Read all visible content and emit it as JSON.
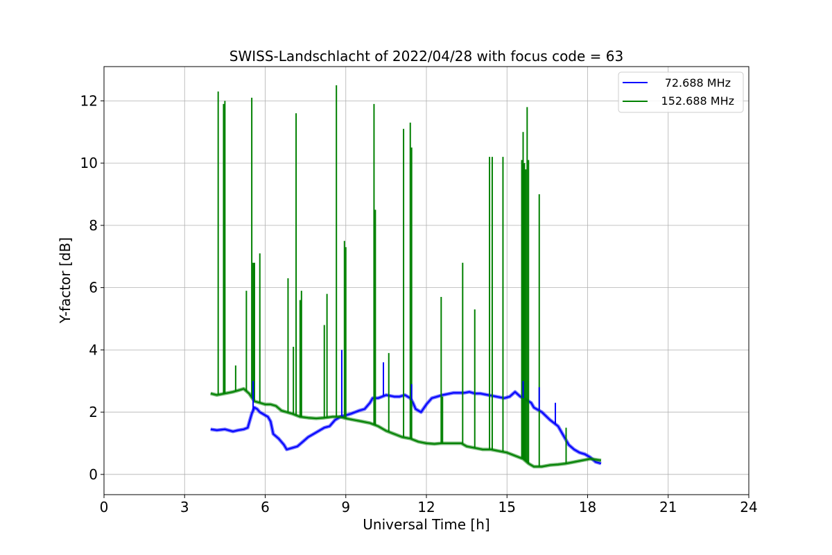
{
  "chart_data": {
    "type": "line",
    "title": "SWISS-Landschlacht of 2022/04/28 with focus code = 63",
    "xlabel": "Universal Time [h]",
    "ylabel": "Y-factor [dB]",
    "xlim": [
      0,
      24
    ],
    "ylim": [
      -0.65,
      13.1
    ],
    "xticks": [
      "0",
      "3",
      "6",
      "9",
      "12",
      "15",
      "18",
      "21",
      "24"
    ],
    "yticks": [
      "0",
      "2",
      "4",
      "6",
      "8",
      "10",
      "12"
    ],
    "grid": true,
    "legend_position": "top-right",
    "series": [
      {
        "name": "72.688 MHz",
        "color": "#0000ff",
        "x": [
          3.97,
          4.2,
          4.5,
          4.8,
          5.0,
          5.2,
          5.35,
          5.5,
          5.6,
          5.7,
          5.8,
          6.0,
          6.1,
          6.2,
          6.3,
          6.5,
          6.7,
          6.8,
          7.0,
          7.2,
          7.4,
          7.6,
          7.8,
          8.0,
          8.2,
          8.4,
          8.6,
          8.8,
          9.0,
          9.2,
          9.5,
          9.7,
          9.9,
          10.0,
          10.2,
          10.5,
          10.8,
          11.0,
          11.2,
          11.4,
          11.5,
          11.6,
          11.8,
          12.0,
          12.2,
          12.4,
          12.6,
          13.0,
          13.4,
          13.6,
          13.8,
          14.0,
          14.3,
          14.6,
          14.9,
          15.1,
          15.3,
          15.5,
          15.7,
          15.9,
          16.0,
          16.3,
          16.6,
          16.9,
          17.1,
          17.3,
          17.5,
          17.7,
          17.9,
          18.1,
          18.3,
          18.5
        ],
        "y": [
          1.45,
          1.42,
          1.45,
          1.38,
          1.42,
          1.45,
          1.5,
          1.95,
          2.15,
          2.1,
          2.0,
          1.9,
          1.85,
          1.7,
          1.3,
          1.15,
          0.95,
          0.8,
          0.85,
          0.9,
          1.05,
          1.2,
          1.3,
          1.4,
          1.5,
          1.55,
          1.75,
          1.85,
          1.9,
          1.95,
          2.05,
          2.1,
          2.3,
          2.45,
          2.45,
          2.55,
          2.5,
          2.5,
          2.55,
          2.45,
          2.3,
          2.1,
          2.0,
          2.25,
          2.45,
          2.5,
          2.55,
          2.62,
          2.62,
          2.65,
          2.6,
          2.6,
          2.55,
          2.5,
          2.45,
          2.5,
          2.65,
          2.5,
          2.4,
          2.3,
          2.15,
          2.0,
          1.75,
          1.55,
          1.25,
          0.95,
          0.8,
          0.7,
          0.65,
          0.55,
          0.4,
          0.35
        ]
      },
      {
        "name": "152.688 MHz",
        "color": "#008000",
        "x": [
          3.97,
          4.2,
          4.5,
          4.8,
          5.0,
          5.2,
          5.4,
          5.6,
          5.8,
          6.0,
          6.2,
          6.4,
          6.6,
          6.8,
          7.0,
          7.3,
          7.6,
          7.9,
          8.2,
          8.5,
          8.8,
          9.0,
          9.3,
          9.6,
          9.9,
          10.2,
          10.5,
          10.8,
          11.1,
          11.4,
          11.7,
          12.0,
          12.3,
          12.55,
          13.3,
          13.5,
          13.8,
          14.1,
          14.4,
          14.7,
          15.0,
          15.3,
          15.6,
          15.8,
          16.0,
          16.3,
          16.6,
          16.9,
          17.2,
          17.5,
          17.8,
          18.1,
          18.5
        ],
        "y": [
          2.6,
          2.55,
          2.6,
          2.65,
          2.7,
          2.75,
          2.6,
          2.35,
          2.3,
          2.25,
          2.25,
          2.2,
          2.05,
          2.0,
          1.95,
          1.85,
          1.82,
          1.8,
          1.82,
          1.85,
          1.85,
          1.8,
          1.75,
          1.7,
          1.65,
          1.55,
          1.4,
          1.3,
          1.2,
          1.15,
          1.05,
          1.0,
          0.98,
          1.0,
          1.0,
          0.9,
          0.85,
          0.8,
          0.8,
          0.75,
          0.7,
          0.6,
          0.5,
          0.35,
          0.25,
          0.25,
          0.3,
          0.32,
          0.35,
          0.4,
          0.45,
          0.5,
          0.45
        ]
      }
    ],
    "spikes": [
      {
        "series": "152.688 MHz",
        "x": [
          4.25,
          4.45,
          4.5,
          4.9,
          5.3,
          5.5,
          5.55,
          5.6,
          5.8,
          6.85,
          7.05,
          7.15,
          7.3,
          7.35,
          8.2,
          8.3,
          8.65,
          8.95,
          9.0,
          10.05,
          10.1,
          10.6,
          11.15,
          11.4,
          11.45,
          12.55,
          12.6,
          13.35,
          13.8,
          14.35,
          14.45,
          14.85,
          15.55,
          15.6,
          15.65,
          15.7,
          15.75,
          15.8,
          16.2,
          17.2
        ],
        "y": [
          12.3,
          11.9,
          12.0,
          3.5,
          5.9,
          12.1,
          6.8,
          6.8,
          7.1,
          6.3,
          4.1,
          11.6,
          5.6,
          5.9,
          4.8,
          5.8,
          12.5,
          7.5,
          7.3,
          11.9,
          8.5,
          3.9,
          11.1,
          11.3,
          10.5,
          5.7,
          2.5,
          6.8,
          5.3,
          10.2,
          10.2,
          10.2,
          10.1,
          11.0,
          10.0,
          9.8,
          11.8,
          10.1,
          9.0,
          1.5
        ]
      },
      {
        "series": "72.688 MHz",
        "x": [
          5.55,
          8.85,
          10.4,
          11.45,
          15.6,
          16.2,
          16.8
        ],
        "y": [
          3.0,
          4.0,
          3.6,
          2.9,
          3.0,
          2.8,
          2.3
        ]
      }
    ]
  }
}
